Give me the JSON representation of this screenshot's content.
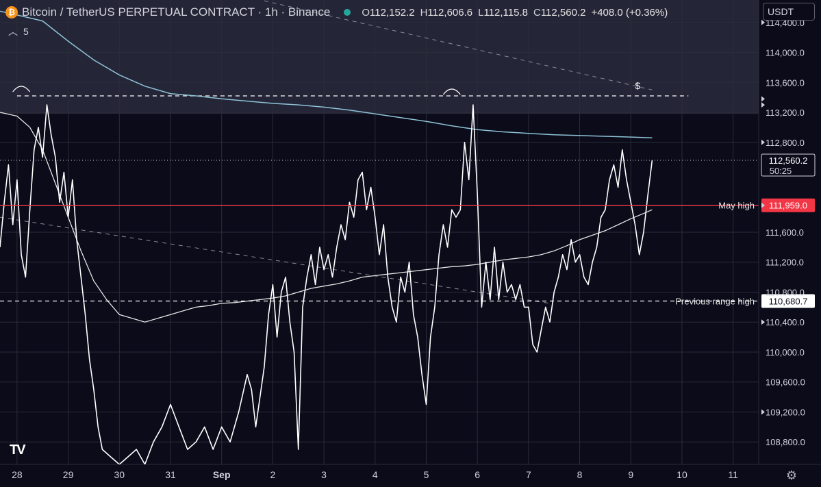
{
  "header": {
    "symbol_icon": "bitcoin-icon",
    "title": "Bitcoin / TetherUS PERPETUAL CONTRACT · 1h · Binance",
    "open_label": "O",
    "open": "112,152.2",
    "high_label": "H",
    "high": "112,606.6",
    "low_label": "L",
    "low": "112,115.8",
    "close_label": "C",
    "close": "112,560.2",
    "change": "+408.0 (+0.36%)",
    "status_color": "#26a69a"
  },
  "sub_legend": {
    "toggle_icon": "chevron-up-icon",
    "count": "5"
  },
  "currency_select": "USDT",
  "logo": "TV",
  "chart_data": {
    "type": "line",
    "ylim": [
      108500,
      114700
    ],
    "y_ticks": [
      108800,
      109200,
      109600,
      110000,
      110400,
      110800,
      111200,
      111600,
      112800,
      113200,
      113600,
      114000,
      114400
    ],
    "y_tick_labels": [
      "108,800.0",
      "109,200.0",
      "109,600.0",
      "110,000.0",
      "110,400.0",
      "110,800.0",
      "111,200.0",
      "111,600.0",
      "112,800.0",
      "113,200.0",
      "113,600.0",
      "114,000.0",
      "114,400.0"
    ],
    "x_ticks": [
      {
        "label": "28",
        "t": 0
      },
      {
        "label": "29",
        "t": 24
      },
      {
        "label": "30",
        "t": 48
      },
      {
        "label": "31",
        "t": 72
      },
      {
        "label": "Sep",
        "t": 96
      },
      {
        "label": "2",
        "t": 120
      },
      {
        "label": "3",
        "t": 144
      },
      {
        "label": "4",
        "t": 168
      },
      {
        "label": "5",
        "t": 192
      },
      {
        "label": "6",
        "t": 216
      },
      {
        "label": "7",
        "t": 240
      },
      {
        "label": "8",
        "t": 264
      },
      {
        "label": "9",
        "t": 288
      },
      {
        "label": "10",
        "t": 312
      },
      {
        "label": "11",
        "t": 336
      }
    ],
    "xlim": [
      -8,
      348
    ],
    "price_path": [
      [
        -8,
        111400
      ],
      [
        -6,
        112000
      ],
      [
        -4,
        112500
      ],
      [
        -2,
        111700
      ],
      [
        0,
        112300
      ],
      [
        2,
        111300
      ],
      [
        4,
        111000
      ],
      [
        6,
        111900
      ],
      [
        8,
        112700
      ],
      [
        10,
        113000
      ],
      [
        12,
        112600
      ],
      [
        14,
        113300
      ],
      [
        16,
        112900
      ],
      [
        18,
        112600
      ],
      [
        20,
        112000
      ],
      [
        22,
        112400
      ],
      [
        24,
        111800
      ],
      [
        26,
        112300
      ],
      [
        28,
        111500
      ],
      [
        30,
        111000
      ],
      [
        32,
        110500
      ],
      [
        34,
        109900
      ],
      [
        36,
        109500
      ],
      [
        38,
        109000
      ],
      [
        40,
        108700
      ],
      [
        44,
        108600
      ],
      [
        48,
        108500
      ],
      [
        52,
        108600
      ],
      [
        56,
        108700
      ],
      [
        60,
        108500
      ],
      [
        64,
        108800
      ],
      [
        68,
        109000
      ],
      [
        72,
        109300
      ],
      [
        76,
        109000
      ],
      [
        80,
        108700
      ],
      [
        84,
        108800
      ],
      [
        88,
        109000
      ],
      [
        92,
        108700
      ],
      [
        96,
        109000
      ],
      [
        100,
        108800
      ],
      [
        104,
        109200
      ],
      [
        108,
        109700
      ],
      [
        110,
        109500
      ],
      [
        112,
        109000
      ],
      [
        114,
        109400
      ],
      [
        116,
        109800
      ],
      [
        118,
        110500
      ],
      [
        120,
        110900
      ],
      [
        122,
        110200
      ],
      [
        124,
        110800
      ],
      [
        126,
        111000
      ],
      [
        128,
        110400
      ],
      [
        130,
        110000
      ],
      [
        132,
        108700
      ],
      [
        134,
        110600
      ],
      [
        136,
        111000
      ],
      [
        138,
        111300
      ],
      [
        140,
        110900
      ],
      [
        142,
        111400
      ],
      [
        144,
        111100
      ],
      [
        146,
        111300
      ],
      [
        148,
        111000
      ],
      [
        150,
        111400
      ],
      [
        152,
        111700
      ],
      [
        154,
        111500
      ],
      [
        156,
        112000
      ],
      [
        158,
        111800
      ],
      [
        160,
        112300
      ],
      [
        162,
        112400
      ],
      [
        164,
        111900
      ],
      [
        166,
        112200
      ],
      [
        168,
        111800
      ],
      [
        170,
        111300
      ],
      [
        172,
        111700
      ],
      [
        174,
        111000
      ],
      [
        176,
        110600
      ],
      [
        178,
        110400
      ],
      [
        180,
        111000
      ],
      [
        182,
        110800
      ],
      [
        184,
        111200
      ],
      [
        186,
        110500
      ],
      [
        188,
        110200
      ],
      [
        190,
        109700
      ],
      [
        192,
        109300
      ],
      [
        194,
        110200
      ],
      [
        196,
        110600
      ],
      [
        198,
        111300
      ],
      [
        200,
        111700
      ],
      [
        202,
        111400
      ],
      [
        204,
        111900
      ],
      [
        206,
        111800
      ],
      [
        208,
        111900
      ],
      [
        210,
        112800
      ],
      [
        212,
        112300
      ],
      [
        214,
        113300
      ],
      [
        216,
        112100
      ],
      [
        218,
        110600
      ],
      [
        220,
        111200
      ],
      [
        222,
        110700
      ],
      [
        224,
        111400
      ],
      [
        226,
        110700
      ],
      [
        228,
        111200
      ],
      [
        230,
        110800
      ],
      [
        232,
        110900
      ],
      [
        234,
        110700
      ],
      [
        236,
        110900
      ],
      [
        238,
        110600
      ],
      [
        240,
        110600
      ],
      [
        242,
        110100
      ],
      [
        244,
        110000
      ],
      [
        246,
        110300
      ],
      [
        248,
        110600
      ],
      [
        250,
        110400
      ],
      [
        252,
        110800
      ],
      [
        254,
        111000
      ],
      [
        256,
        111300
      ],
      [
        258,
        111100
      ],
      [
        260,
        111500
      ],
      [
        262,
        111200
      ],
      [
        264,
        111300
      ],
      [
        266,
        111000
      ],
      [
        268,
        110900
      ],
      [
        270,
        111200
      ],
      [
        272,
        111400
      ],
      [
        274,
        111800
      ],
      [
        276,
        111900
      ],
      [
        278,
        112300
      ],
      [
        280,
        112500
      ],
      [
        282,
        112200
      ],
      [
        284,
        112700
      ],
      [
        286,
        112300
      ],
      [
        288,
        112000
      ],
      [
        290,
        111700
      ],
      [
        292,
        111300
      ],
      [
        294,
        111600
      ],
      [
        296,
        112100
      ],
      [
        298,
        112560
      ]
    ],
    "ma_slow": [
      [
        -8,
        114550
      ],
      [
        0,
        114500
      ],
      [
        12,
        114420
      ],
      [
        24,
        114150
      ],
      [
        36,
        113900
      ],
      [
        48,
        113700
      ],
      [
        60,
        113550
      ],
      [
        72,
        113450
      ],
      [
        84,
        113420
      ],
      [
        96,
        113380
      ],
      [
        108,
        113350
      ],
      [
        120,
        113320
      ],
      [
        132,
        113300
      ],
      [
        144,
        113270
      ],
      [
        156,
        113230
      ],
      [
        168,
        113180
      ],
      [
        180,
        113130
      ],
      [
        192,
        113080
      ],
      [
        204,
        113020
      ],
      [
        216,
        112970
      ],
      [
        228,
        112940
      ],
      [
        240,
        112920
      ],
      [
        252,
        112900
      ],
      [
        264,
        112890
      ],
      [
        276,
        112880
      ],
      [
        288,
        112870
      ],
      [
        298,
        112860
      ]
    ],
    "ma_fast": [
      [
        -8,
        113200
      ],
      [
        0,
        113150
      ],
      [
        6,
        113000
      ],
      [
        12,
        112700
      ],
      [
        18,
        112250
      ],
      [
        24,
        111800
      ],
      [
        30,
        111350
      ],
      [
        36,
        110950
      ],
      [
        42,
        110700
      ],
      [
        48,
        110500
      ],
      [
        54,
        110450
      ],
      [
        60,
        110400
      ],
      [
        66,
        110450
      ],
      [
        72,
        110500
      ],
      [
        78,
        110550
      ],
      [
        84,
        110600
      ],
      [
        90,
        110620
      ],
      [
        96,
        110650
      ],
      [
        102,
        110660
      ],
      [
        108,
        110680
      ],
      [
        114,
        110700
      ],
      [
        120,
        110720
      ],
      [
        126,
        110750
      ],
      [
        132,
        110800
      ],
      [
        138,
        110850
      ],
      [
        144,
        110880
      ],
      [
        150,
        110910
      ],
      [
        156,
        110950
      ],
      [
        162,
        111000
      ],
      [
        168,
        111020
      ],
      [
        174,
        111040
      ],
      [
        180,
        111060
      ],
      [
        186,
        111080
      ],
      [
        192,
        111100
      ],
      [
        198,
        111120
      ],
      [
        204,
        111140
      ],
      [
        210,
        111150
      ],
      [
        216,
        111170
      ],
      [
        222,
        111200
      ],
      [
        228,
        111230
      ],
      [
        234,
        111250
      ],
      [
        240,
        111270
      ],
      [
        246,
        111300
      ],
      [
        252,
        111350
      ],
      [
        258,
        111420
      ],
      [
        264,
        111500
      ],
      [
        270,
        111560
      ],
      [
        276,
        111620
      ],
      [
        282,
        111700
      ],
      [
        288,
        111780
      ],
      [
        294,
        111850
      ],
      [
        298,
        111900
      ]
    ],
    "levels": [
      {
        "label": "May high",
        "value": 111959.0,
        "value_label": "111,959.0",
        "color": "#f23645"
      },
      {
        "label": "Previous range high",
        "value": 110680.7,
        "value_label": "110,680.7",
        "color": "#ffffff"
      }
    ],
    "resistance_level": 113420,
    "dollar_marker": "$",
    "last_price": {
      "value": 112560.2,
      "value_label": "112,560.2",
      "countdown": "50:25"
    },
    "shaded_zone": {
      "from": 113180,
      "to": 114700
    },
    "trend_line_upper": [
      [
        -8,
        115500
      ],
      [
        298,
        113500
      ]
    ],
    "trend_line_lower": [
      [
        -8,
        111800
      ],
      [
        250,
        110650
      ]
    ]
  },
  "settings_icon": "gear-icon"
}
